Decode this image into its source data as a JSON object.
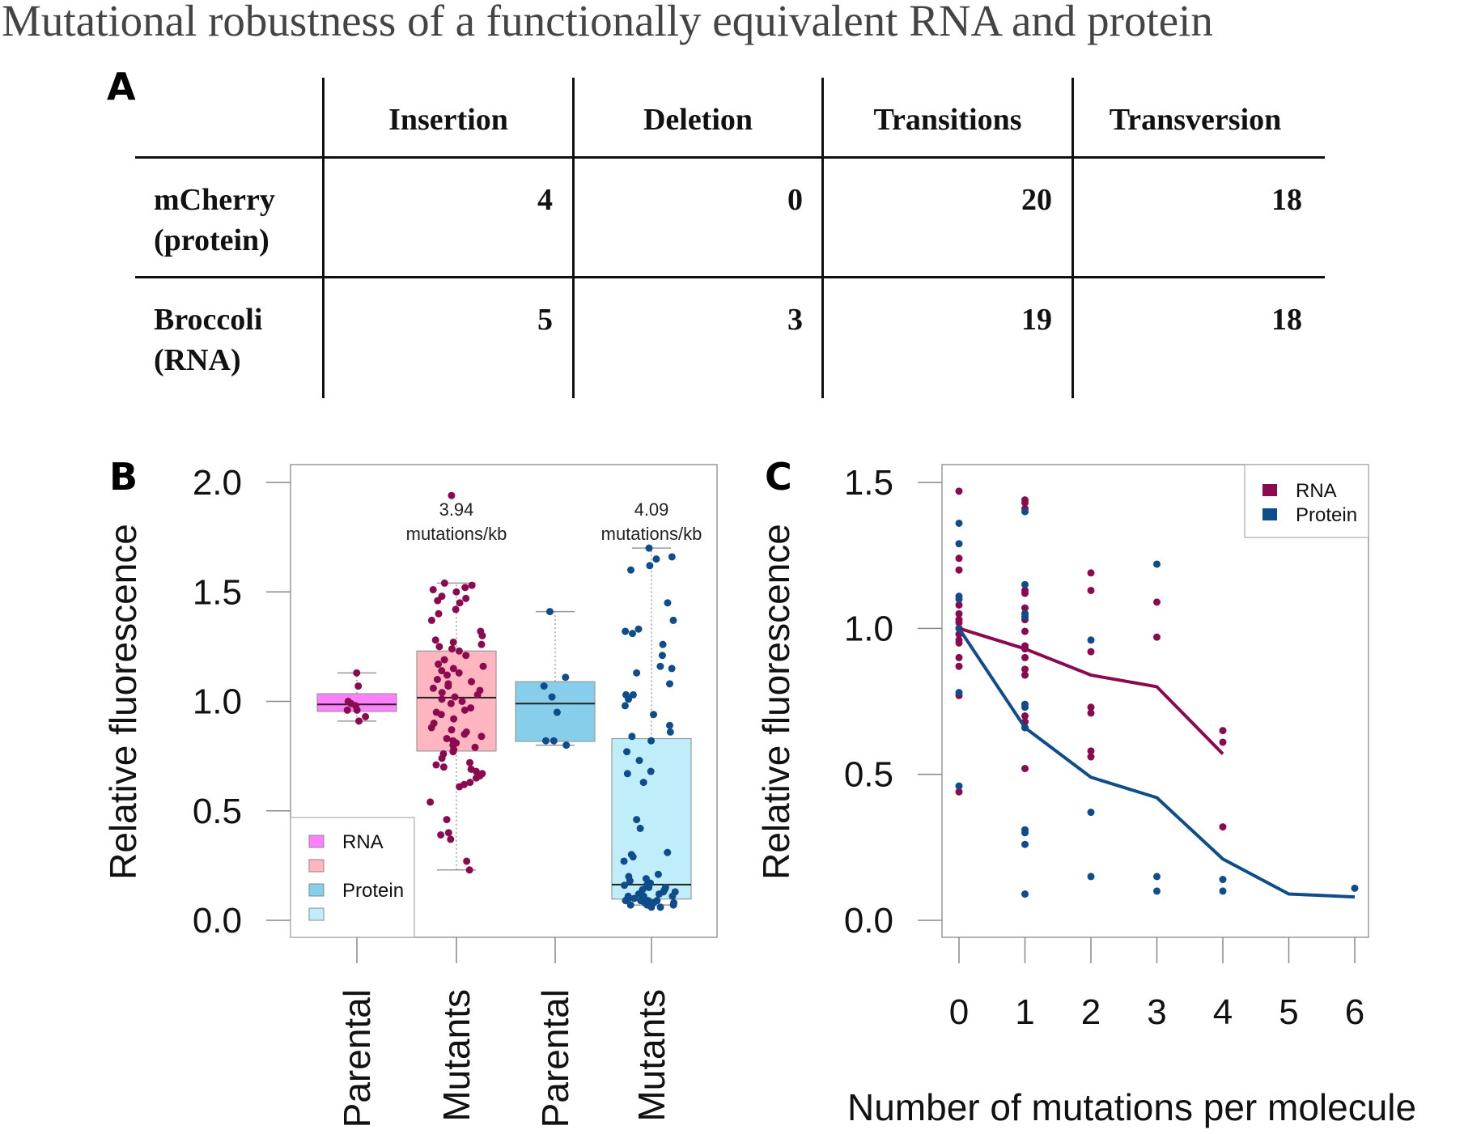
{
  "title": "Mutational robustness of a functionally equivalent RNA and protein",
  "panels": {
    "a": "A",
    "b": "B",
    "c": "C"
  },
  "table": {
    "columns": [
      "Insertion",
      "Deletion",
      "Transitions",
      "Transversion"
    ],
    "rows": [
      {
        "label_line1": "mCherry",
        "label_line2": "(protein)",
        "values": [
          "4",
          "0",
          "20",
          "18"
        ]
      },
      {
        "label_line1": "Broccoli",
        "label_line2": "(RNA)",
        "values": [
          "5",
          "3",
          "19",
          "18"
        ]
      }
    ]
  },
  "colors": {
    "rna_dot": "#8b0a4f",
    "protein_dot": "#0f4c8a",
    "rna_parental_box": "#ff80ff",
    "rna_mutant_box": "#ffb6c1",
    "protein_parental_box": "#87ceeb",
    "protein_mutant_box": "#bfeefa"
  },
  "chart_data": [
    {
      "type": "box",
      "panel": "B",
      "ylabel": "Relative fluorescence",
      "xlabel": "",
      "ylim": [
        0,
        2.0
      ],
      "yticks": [
        "0.0",
        "0.5",
        "1.0",
        "1.5",
        "2.0"
      ],
      "categories": [
        "Parental",
        "Mutants",
        "Parental",
        "Mutants"
      ],
      "annotations": [
        {
          "category_index": 1,
          "line1": "3.94",
          "line2": "mutations/kb"
        },
        {
          "category_index": 3,
          "line1": "4.09",
          "line2": "mutations/kb"
        }
      ],
      "legend": {
        "position": "bottom-left",
        "entries": [
          "RNA",
          "",
          "Protein",
          ""
        ]
      },
      "boxes": [
        {
          "group": "RNA",
          "category": "Parental",
          "whisker_low": 0.91,
          "q1": 0.954,
          "median": 0.986,
          "q3": 1.035,
          "whisker_high": 1.13,
          "points": [
            1.13,
            1.07,
            1.0,
            0.99,
            0.98,
            0.96,
            0.96,
            0.93,
            0.91
          ]
        },
        {
          "group": "RNA",
          "category": "Mutants",
          "whisker_low": 0.23,
          "q1": 0.773,
          "median": 1.017,
          "q3": 1.23,
          "whisker_high": 1.54,
          "points": [
            1.94,
            1.54,
            1.53,
            1.52,
            1.51,
            1.5,
            1.48,
            1.47,
            1.46,
            1.45,
            1.42,
            1.4,
            1.37,
            1.32,
            1.3,
            1.28,
            1.27,
            1.26,
            1.25,
            1.24,
            1.23,
            1.21,
            1.19,
            1.17,
            1.16,
            1.15,
            1.14,
            1.13,
            1.12,
            1.1,
            1.09,
            1.08,
            1.07,
            1.06,
            1.05,
            1.04,
            1.03,
            1.02,
            1.01,
            1.0,
            0.99,
            0.97,
            0.96,
            0.95,
            0.94,
            0.92,
            0.9,
            0.88,
            0.87,
            0.86,
            0.85,
            0.84,
            0.83,
            0.82,
            0.81,
            0.8,
            0.79,
            0.78,
            0.77,
            0.76,
            0.74,
            0.72,
            0.71,
            0.7,
            0.69,
            0.68,
            0.67,
            0.66,
            0.65,
            0.63,
            0.62,
            0.61,
            0.54,
            0.46,
            0.4,
            0.39,
            0.37,
            0.27,
            0.23
          ]
        },
        {
          "group": "Protein",
          "category": "Parental",
          "whisker_low": 0.8,
          "q1": 0.817,
          "median": 0.99,
          "q3": 1.09,
          "whisker_high": 1.41,
          "points": [
            1.41,
            1.11,
            1.07,
            1.02,
            0.95,
            0.82,
            0.82,
            0.8
          ]
        },
        {
          "group": "Protein",
          "category": "Mutants",
          "whisker_low": 0.07,
          "q1": 0.097,
          "median": 0.163,
          "q3": 0.83,
          "whisker_high": 1.7,
          "points": [
            1.7,
            1.66,
            1.65,
            1.62,
            1.6,
            1.45,
            1.37,
            1.33,
            1.32,
            1.31,
            1.26,
            1.21,
            1.16,
            1.15,
            1.13,
            1.08,
            1.03,
            1.03,
            1.01,
            0.98,
            0.94,
            0.89,
            0.86,
            0.84,
            0.82,
            0.77,
            0.73,
            0.68,
            0.67,
            0.63,
            0.46,
            0.42,
            0.31,
            0.3,
            0.29,
            0.27,
            0.21,
            0.2,
            0.19,
            0.18,
            0.17,
            0.16,
            0.16,
            0.15,
            0.15,
            0.14,
            0.14,
            0.13,
            0.13,
            0.12,
            0.12,
            0.11,
            0.11,
            0.11,
            0.1,
            0.1,
            0.1,
            0.09,
            0.09,
            0.09,
            0.09,
            0.08,
            0.08,
            0.08,
            0.08,
            0.07,
            0.07,
            0.07,
            0.06,
            0.06
          ]
        }
      ]
    },
    {
      "type": "line",
      "panel": "C",
      "xlabel": "Number of mutations per molecule",
      "ylabel": "Relative fluorescence",
      "ylim": [
        0,
        1.5
      ],
      "xlim": [
        0,
        6
      ],
      "yticks": [
        "0.0",
        "0.5",
        "1.0",
        "1.5"
      ],
      "xticks": [
        "0",
        "1",
        "2",
        "3",
        "4",
        "5",
        "6"
      ],
      "legend": {
        "position": "top-right",
        "entries": [
          "RNA",
          "Protein"
        ]
      },
      "series": [
        {
          "name": "RNA",
          "x": [
            0,
            1,
            2,
            3,
            4
          ],
          "values": [
            1.0,
            0.93,
            0.84,
            0.8,
            0.57
          ],
          "points": [
            [
              0,
              1.47
            ],
            [
              0,
              1.24
            ],
            [
              0,
              1.2
            ],
            [
              0,
              1.08
            ],
            [
              0,
              1.05
            ],
            [
              0,
              1.03
            ],
            [
              0,
              1.02
            ],
            [
              0,
              1.0
            ],
            [
              0,
              0.98
            ],
            [
              0,
              0.96
            ],
            [
              0,
              0.95
            ],
            [
              0,
              0.9
            ],
            [
              0,
              0.87
            ],
            [
              0,
              0.77
            ],
            [
              0,
              0.44
            ],
            [
              1,
              1.44
            ],
            [
              1,
              1.43
            ],
            [
              1,
              1.41
            ],
            [
              1,
              1.13
            ],
            [
              1,
              1.12
            ],
            [
              1,
              1.07
            ],
            [
              1,
              1.05
            ],
            [
              1,
              1.03
            ],
            [
              1,
              0.99
            ],
            [
              1,
              0.94
            ],
            [
              1,
              0.93
            ],
            [
              1,
              0.9
            ],
            [
              1,
              0.86
            ],
            [
              1,
              0.84
            ],
            [
              1,
              0.7
            ],
            [
              1,
              0.68
            ],
            [
              1,
              0.66
            ],
            [
              1,
              0.52
            ],
            [
              2,
              1.19
            ],
            [
              2,
              1.13
            ],
            [
              2,
              0.92
            ],
            [
              2,
              0.73
            ],
            [
              2,
              0.71
            ],
            [
              2,
              0.58
            ],
            [
              2,
              0.56
            ],
            [
              3,
              1.09
            ],
            [
              3,
              0.97
            ],
            [
              4,
              0.65
            ],
            [
              4,
              0.61
            ],
            [
              4,
              0.32
            ]
          ]
        },
        {
          "name": "Protein",
          "x": [
            0,
            1,
            2,
            3,
            4,
            5,
            6
          ],
          "values": [
            1.0,
            0.66,
            0.49,
            0.42,
            0.21,
            0.09,
            0.08
          ],
          "points": [
            [
              0,
              1.36
            ],
            [
              0,
              1.29
            ],
            [
              0,
              1.11
            ],
            [
              0,
              1.1
            ],
            [
              0,
              1.0
            ],
            [
              0,
              0.78
            ],
            [
              0,
              0.46
            ],
            [
              1,
              1.4
            ],
            [
              1,
              1.15
            ],
            [
              1,
              1.05
            ],
            [
              1,
              1.04
            ],
            [
              1,
              0.74
            ],
            [
              1,
              0.73
            ],
            [
              1,
              0.66
            ],
            [
              1,
              0.31
            ],
            [
              1,
              0.3
            ],
            [
              1,
              0.26
            ],
            [
              1,
              0.09
            ],
            [
              2,
              0.96
            ],
            [
              2,
              0.37
            ],
            [
              2,
              0.15
            ],
            [
              3,
              1.22
            ],
            [
              3,
              0.15
            ],
            [
              3,
              0.1
            ],
            [
              4,
              0.14
            ],
            [
              4,
              0.1
            ],
            [
              6,
              0.11
            ]
          ]
        }
      ]
    }
  ]
}
